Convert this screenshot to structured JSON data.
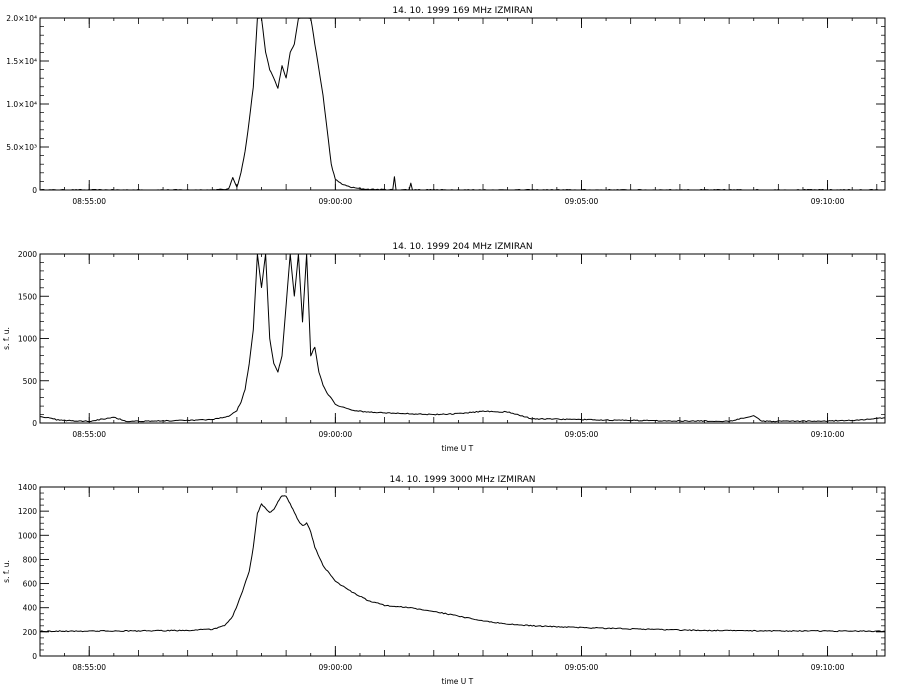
{
  "chart_data": [
    {
      "type": "line",
      "title": "14.  10.  1999    169 MHz    IZMIRAN",
      "xlabel": "",
      "ylabel": "",
      "x_range": [
        "08:54:00",
        "09:11:10"
      ],
      "ylim": [
        0,
        20000
      ],
      "x_ticks": [
        "08:55:00",
        "09:00:00",
        "09:05:00",
        "09:10:00"
      ],
      "y_ticks": [
        {
          "value": 0,
          "label": "0"
        },
        {
          "value": 5000,
          "label": "5.0×10³"
        },
        {
          "value": 10000,
          "label": "1.0×10⁴"
        },
        {
          "value": 15000,
          "label": "1.5×10⁴"
        },
        {
          "value": 20000,
          "label": "2.0×10⁴"
        }
      ],
      "series": [
        {
          "color": "#000000",
          "points": [
            [
              "08:54:00",
              0
            ],
            [
              "08:56:00",
              0
            ],
            [
              "08:57:30",
              0
            ],
            [
              "08:57:50",
              100
            ],
            [
              "08:57:55",
              1500
            ],
            [
              "08:58:00",
              300
            ],
            [
              "08:58:05",
              2000
            ],
            [
              "08:58:10",
              4500
            ],
            [
              "08:58:15",
              8000
            ],
            [
              "08:58:20",
              12000
            ],
            [
              "08:58:25",
              20000
            ],
            [
              "08:58:30",
              20000
            ],
            [
              "08:58:35",
              16000
            ],
            [
              "08:58:40",
              14000
            ],
            [
              "08:58:45",
              13000
            ],
            [
              "08:58:50",
              11800
            ],
            [
              "08:58:55",
              14500
            ],
            [
              "08:59:00",
              13000
            ],
            [
              "08:59:05",
              16000
            ],
            [
              "08:59:10",
              17000
            ],
            [
              "08:59:15",
              20000
            ],
            [
              "08:59:20",
              20000
            ],
            [
              "08:59:25",
              20000
            ],
            [
              "08:59:30",
              20000
            ],
            [
              "08:59:35",
              17000
            ],
            [
              "08:59:40",
              14000
            ],
            [
              "08:59:45",
              11000
            ],
            [
              "08:59:50",
              7000
            ],
            [
              "08:59:55",
              3000
            ],
            [
              "09:00:00",
              1200
            ],
            [
              "09:00:10",
              600
            ],
            [
              "09:00:20",
              300
            ],
            [
              "09:00:30",
              150
            ],
            [
              "09:00:40",
              80
            ],
            [
              "09:01:10",
              30
            ],
            [
              "09:01:12",
              1500
            ],
            [
              "09:01:14",
              30
            ],
            [
              "09:01:30",
              20
            ],
            [
              "09:01:32",
              800
            ],
            [
              "09:01:34",
              20
            ],
            [
              "09:02:00",
              10
            ],
            [
              "09:03:00",
              0
            ],
            [
              "09:11:10",
              0
            ]
          ]
        }
      ]
    },
    {
      "type": "line",
      "title": "14.  10.  1999    204 MHz    IZMIRAN",
      "xlabel": "time  U T",
      "ylabel": "s. f. u.",
      "x_range": [
        "08:54:00",
        "09:11:10"
      ],
      "ylim": [
        0,
        2000
      ],
      "x_ticks": [
        "08:55:00",
        "09:00:00",
        "09:05:00",
        "09:10:00"
      ],
      "y_ticks": [
        {
          "value": 0,
          "label": "0"
        },
        {
          "value": 500,
          "label": "500"
        },
        {
          "value": 1000,
          "label": "1000"
        },
        {
          "value": 1500,
          "label": "1500"
        },
        {
          "value": 2000,
          "label": "2000"
        }
      ],
      "series": [
        {
          "color": "#000000",
          "points": [
            [
              "08:54:00",
              80
            ],
            [
              "08:54:20",
              40
            ],
            [
              "08:54:40",
              25
            ],
            [
              "08:55:00",
              20
            ],
            [
              "08:55:30",
              70
            ],
            [
              "08:55:45",
              20
            ],
            [
              "08:56:30",
              25
            ],
            [
              "08:57:00",
              30
            ],
            [
              "08:57:30",
              40
            ],
            [
              "08:57:50",
              80
            ],
            [
              "08:58:00",
              150
            ],
            [
              "08:58:05",
              250
            ],
            [
              "08:58:10",
              400
            ],
            [
              "08:58:15",
              700
            ],
            [
              "08:58:20",
              1100
            ],
            [
              "08:58:25",
              2000
            ],
            [
              "08:58:30",
              1600
            ],
            [
              "08:58:35",
              2000
            ],
            [
              "08:58:40",
              1000
            ],
            [
              "08:58:45",
              700
            ],
            [
              "08:58:50",
              600
            ],
            [
              "08:58:55",
              800
            ],
            [
              "08:59:00",
              1400
            ],
            [
              "08:59:05",
              2000
            ],
            [
              "08:59:10",
              1500
            ],
            [
              "08:59:15",
              2000
            ],
            [
              "08:59:20",
              1200
            ],
            [
              "08:59:25",
              2000
            ],
            [
              "08:59:30",
              800
            ],
            [
              "08:59:35",
              900
            ],
            [
              "08:59:40",
              600
            ],
            [
              "08:59:45",
              450
            ],
            [
              "08:59:50",
              350
            ],
            [
              "08:59:55",
              300
            ],
            [
              "09:00:00",
              220
            ],
            [
              "09:00:20",
              150
            ],
            [
              "09:00:40",
              130
            ],
            [
              "09:01:00",
              120
            ],
            [
              "09:01:30",
              110
            ],
            [
              "09:02:00",
              100
            ],
            [
              "09:02:30",
              110
            ],
            [
              "09:03:00",
              140
            ],
            [
              "09:03:30",
              130
            ],
            [
              "09:04:00",
              50
            ],
            [
              "09:05:00",
              40
            ],
            [
              "09:06:00",
              30
            ],
            [
              "09:07:00",
              25
            ],
            [
              "09:08:00",
              20
            ],
            [
              "09:08:30",
              90
            ],
            [
              "09:08:40",
              20
            ],
            [
              "09:09:30",
              20
            ],
            [
              "09:10:30",
              30
            ],
            [
              "09:11:10",
              60
            ]
          ]
        }
      ]
    },
    {
      "type": "line",
      "title": "14.  10.  1999    3000 MHz    IZMIRAN",
      "xlabel": "time  U T",
      "ylabel": "s. f. u.",
      "x_range": [
        "08:54:00",
        "09:11:10"
      ],
      "ylim": [
        0,
        1400
      ],
      "x_ticks": [
        "08:55:00",
        "09:00:00",
        "09:05:00",
        "09:10:00"
      ],
      "y_ticks": [
        {
          "value": 0,
          "label": "0"
        },
        {
          "value": 200,
          "label": "200"
        },
        {
          "value": 400,
          "label": "400"
        },
        {
          "value": 600,
          "label": "600"
        },
        {
          "value": 800,
          "label": "800"
        },
        {
          "value": 1000,
          "label": "1000"
        },
        {
          "value": 1200,
          "label": "1200"
        },
        {
          "value": 1400,
          "label": "1400"
        }
      ],
      "series": [
        {
          "color": "#000000",
          "points": [
            [
              "08:54:00",
              205
            ],
            [
              "08:56:00",
              208
            ],
            [
              "08:57:00",
              212
            ],
            [
              "08:57:30",
              222
            ],
            [
              "08:57:45",
              250
            ],
            [
              "08:57:55",
              330
            ],
            [
              "08:58:05",
              500
            ],
            [
              "08:58:15",
              700
            ],
            [
              "08:58:20",
              900
            ],
            [
              "08:58:25",
              1180
            ],
            [
              "08:58:30",
              1260
            ],
            [
              "08:58:35",
              1220
            ],
            [
              "08:58:40",
              1190
            ],
            [
              "08:58:45",
              1210
            ],
            [
              "08:58:50",
              1280
            ],
            [
              "08:58:55",
              1330
            ],
            [
              "08:59:00",
              1320
            ],
            [
              "08:59:05",
              1260
            ],
            [
              "08:59:10",
              1190
            ],
            [
              "08:59:15",
              1120
            ],
            [
              "08:59:20",
              1080
            ],
            [
              "08:59:25",
              1100
            ],
            [
              "08:59:30",
              1030
            ],
            [
              "08:59:35",
              900
            ],
            [
              "08:59:45",
              750
            ],
            [
              "09:00:00",
              620
            ],
            [
              "09:00:20",
              530
            ],
            [
              "09:00:40",
              460
            ],
            [
              "09:01:00",
              420
            ],
            [
              "09:01:30",
              400
            ],
            [
              "09:02:00",
              370
            ],
            [
              "09:02:30",
              330
            ],
            [
              "09:03:00",
              290
            ],
            [
              "09:03:30",
              265
            ],
            [
              "09:04:00",
              250
            ],
            [
              "09:05:00",
              235
            ],
            [
              "09:06:00",
              225
            ],
            [
              "09:07:00",
              215
            ],
            [
              "09:08:00",
              210
            ],
            [
              "09:09:00",
              208
            ],
            [
              "09:11:10",
              205
            ]
          ]
        }
      ]
    }
  ]
}
